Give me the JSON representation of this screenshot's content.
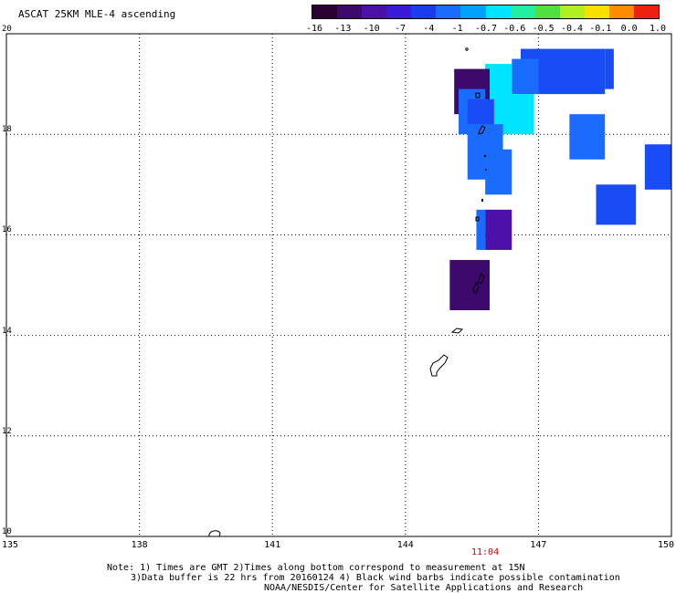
{
  "title": "ASCAT 25KM MLE-4 ascending",
  "colorbar": {
    "labels": [
      "-16",
      "-13",
      "-10",
      "-7",
      "-4",
      "-1",
      "-0.7",
      "-0.6",
      "-0.5",
      "-0.4",
      "-0.1",
      "0.0",
      "1.0"
    ],
    "colors": [
      "#2a0033",
      "#3d0a6b",
      "#4a10a8",
      "#3a1ad8",
      "#1a3cf0",
      "#1a6cff",
      "#00a0ff",
      "#00e4ff",
      "#20f0a0",
      "#50e040",
      "#b0f020",
      "#f8e000",
      "#ff8c00",
      "#f02010"
    ]
  },
  "axes": {
    "lat_min": 10,
    "lat_max": 20,
    "lon_min": 135,
    "lon_max": 150,
    "lat_ticks": [
      "10",
      "12",
      "14",
      "16",
      "18",
      "20"
    ],
    "lon_ticks": [
      "135",
      "138",
      "141",
      "144",
      "147",
      "150"
    ],
    "grid": "dotted"
  },
  "time_label": "11:04",
  "notes": {
    "line1": "Note: 1) Times are GMT 2)Times along bottom correspond to measurement at 15N",
    "line2": "3)Data buffer is 22 hrs from 20160124 4) Black wind barbs indicate possible contamination",
    "line3": "NOAA/NESDIS/Center for Satellite Applications and Research"
  },
  "map_data": {
    "cells": [
      {
        "lon0": 146.6,
        "lon1": 148.5,
        "lat0": 18.8,
        "lat1": 19.7,
        "color": "#1a4cf5"
      },
      {
        "lon0": 148.5,
        "lon1": 148.7,
        "lat0": 18.9,
        "lat1": 19.7,
        "color": "#1a4cf5"
      },
      {
        "lon0": 146.4,
        "lon1": 147.0,
        "lat0": 18.8,
        "lat1": 19.5,
        "color": "#1a6cff"
      },
      {
        "lon0": 145.8,
        "lon1": 146.4,
        "lat0": 18.7,
        "lat1": 19.4,
        "color": "#00e4ff"
      },
      {
        "lon0": 146.0,
        "lon1": 146.9,
        "lat0": 18.0,
        "lat1": 18.8,
        "color": "#00e4ff"
      },
      {
        "lon0": 145.1,
        "lon1": 145.9,
        "lat0": 18.4,
        "lat1": 19.3,
        "color": "#3d0a6b"
      },
      {
        "lon0": 145.2,
        "lon1": 145.8,
        "lat0": 18.0,
        "lat1": 18.9,
        "color": "#1a6cff"
      },
      {
        "lon0": 145.4,
        "lon1": 146.0,
        "lat0": 18.0,
        "lat1": 18.7,
        "color": "#1a4cf5"
      },
      {
        "lon0": 145.4,
        "lon1": 146.2,
        "lat0": 17.1,
        "lat1": 18.2,
        "color": "#1a6cff"
      },
      {
        "lon0": 145.8,
        "lon1": 146.4,
        "lat0": 16.8,
        "lat1": 17.7,
        "color": "#1a6cff"
      },
      {
        "lon0": 147.7,
        "lon1": 148.5,
        "lat0": 17.5,
        "lat1": 18.4,
        "color": "#1a6cff"
      },
      {
        "lon0": 149.4,
        "lon1": 150.2,
        "lat0": 16.9,
        "lat1": 17.8,
        "color": "#1a4cf5"
      },
      {
        "lon0": 148.3,
        "lon1": 149.2,
        "lat0": 16.2,
        "lat1": 17.0,
        "color": "#1a4cf5"
      },
      {
        "lon0": 145.6,
        "lon1": 145.8,
        "lat0": 15.7,
        "lat1": 16.5,
        "color": "#1a6cff"
      },
      {
        "lon0": 145.8,
        "lon1": 146.4,
        "lat0": 15.7,
        "lat1": 16.5,
        "color": "#4a10a8"
      },
      {
        "lon0": 145.0,
        "lon1": 145.9,
        "lat0": 14.5,
        "lat1": 15.5,
        "color": "#3d0a6b"
      }
    ]
  }
}
